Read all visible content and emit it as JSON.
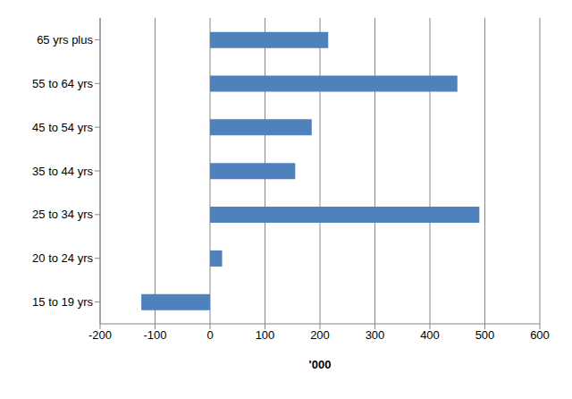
{
  "chart_data": {
    "type": "bar",
    "orientation": "horizontal",
    "x_label": "'000",
    "categories": [
      "65 yrs plus",
      "55 to 64 yrs",
      "45 to 54 yrs",
      "35 to 44 yrs",
      "25 to 34 yrs",
      "20 to 24 yrs",
      "15 to 19 yrs"
    ],
    "values": [
      215,
      450,
      185,
      155,
      490,
      22,
      -125
    ],
    "color": "#4f81bd",
    "xlim": [
      -200,
      600
    ],
    "xticks": [
      -200,
      -100,
      0,
      100,
      200,
      300,
      400,
      500,
      600
    ],
    "grid": true
  }
}
